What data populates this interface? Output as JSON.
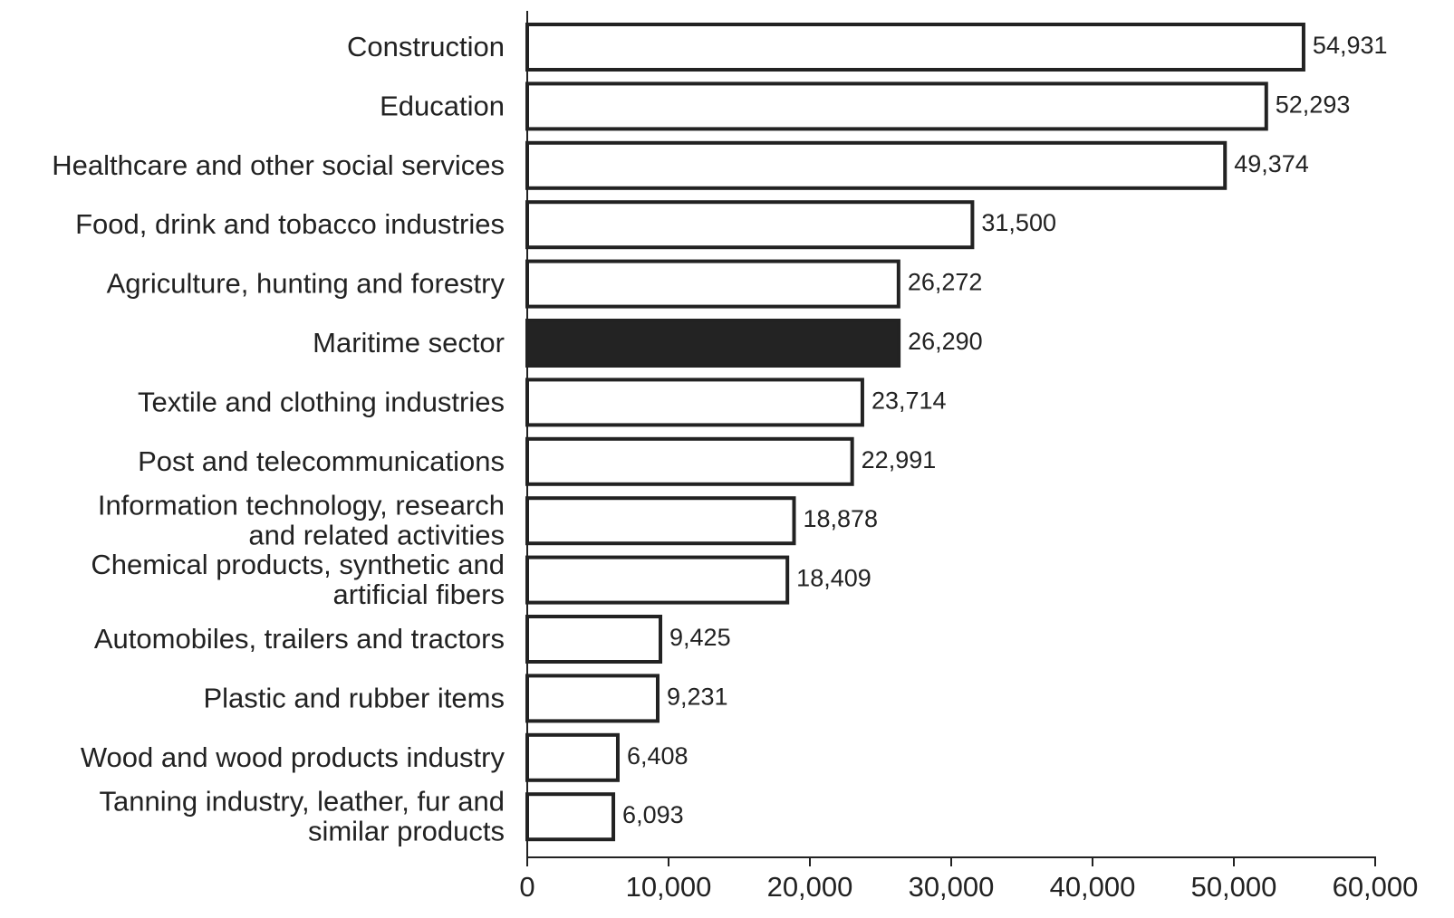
{
  "chart_data": {
    "type": "bar",
    "orientation": "horizontal",
    "title": "",
    "xlabel": "",
    "ylabel": "",
    "categories": [
      [
        "Construction"
      ],
      [
        "Education"
      ],
      [
        "Healthcare and other social services"
      ],
      [
        "Food, drink and tobacco industries"
      ],
      [
        "Agriculture, hunting and forestry"
      ],
      [
        "Maritime sector"
      ],
      [
        "Textile and clothing industries"
      ],
      [
        "Post and telecommunications"
      ],
      [
        "Information technology, research",
        "and related activities"
      ],
      [
        "Chemical products, synthetic and",
        "artificial fibers"
      ],
      [
        "Automobiles, trailers and tractors"
      ],
      [
        "Plastic and rubber items"
      ],
      [
        "Wood and wood products industry"
      ],
      [
        "Tanning industry, leather, fur and",
        "similar products"
      ]
    ],
    "values": [
      54931,
      52293,
      49374,
      31500,
      26272,
      26290,
      23714,
      22991,
      18878,
      18409,
      9425,
      9231,
      6408,
      6093
    ],
    "value_labels": [
      "54,931",
      "52,293",
      "49,374",
      "31,500",
      "26,272",
      "26,290",
      "23,714",
      "22,991",
      "18,878",
      "18,409",
      "9,425",
      "9,231",
      "6,408",
      "6,093"
    ],
    "highlighted_category": "Maritime sector",
    "xlim": [
      0,
      60000
    ],
    "xticks": [
      0,
      10000,
      20000,
      30000,
      40000,
      50000,
      60000
    ],
    "xtick_labels": [
      "0",
      "10,000",
      "20,000",
      "30,000",
      "40,000",
      "50,000",
      "60,000"
    ],
    "colors": {
      "bar_fill": "#ffffff",
      "bar_stroke": "#222222",
      "highlight_fill": "#232323",
      "axis": "#222222",
      "text": "#222222"
    },
    "grid": false,
    "legend": "none"
  }
}
